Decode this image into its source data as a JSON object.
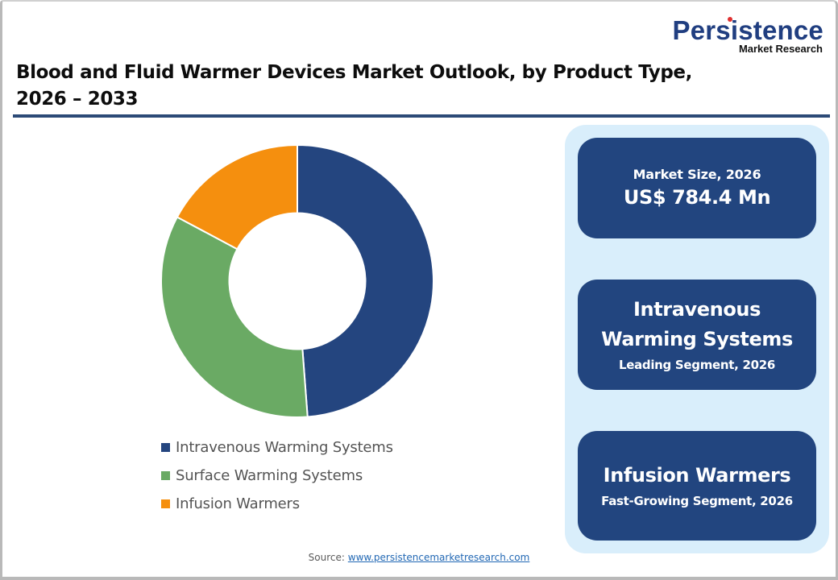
{
  "brand": {
    "name": "Persistence",
    "sub": "Market Research",
    "color": "#203e80"
  },
  "header": {
    "title": "Blood and Fluid Warmer Devices Market Outlook, by Product Type, 2026 – 2033",
    "title_line1": "Blood and Fluid Warmer Devices Market Outlook, by Product Type,",
    "title_line2": "2026 – 2033"
  },
  "chart_data": {
    "type": "pie",
    "subtype": "donut",
    "title": "Blood and Fluid Warmer Devices Market Outlook, by Product Type, 2026 – 2033",
    "categories": [
      "Intravenous Warming Systems",
      "Surface Warming Systems",
      "Infusion Warmers"
    ],
    "values": [
      48.8,
      34.0,
      17.2
    ],
    "unit": "% share (estimated from slice angles)",
    "colors": [
      "#24457f",
      "#6aaa64",
      "#f58f0e"
    ],
    "start_angle_deg": 0,
    "direction": "clockwise",
    "hole_ratio": 0.5,
    "legend_position": "bottom",
    "data_labels": false
  },
  "legend": {
    "items": [
      {
        "label": "Intravenous Warming Systems",
        "color": "#24457f"
      },
      {
        "label": "Surface Warming Systems",
        "color": "#6aaa64"
      },
      {
        "label": "Infusion Warmers",
        "color": "#f58f0e"
      }
    ]
  },
  "cards": {
    "market_size": {
      "label": "Market Size, 2026",
      "value": "US$ 784.4 Mn"
    },
    "leading": {
      "line1": "Intravenous",
      "line2": "Warming Systems",
      "sub": "Leading Segment, 2026"
    },
    "fastest": {
      "title": "Infusion Warmers",
      "sub": "Fast-Growing Segment, 2026"
    }
  },
  "footer": {
    "source_label": "Source:",
    "source_link": "www.persistencemarketresearch.com"
  }
}
